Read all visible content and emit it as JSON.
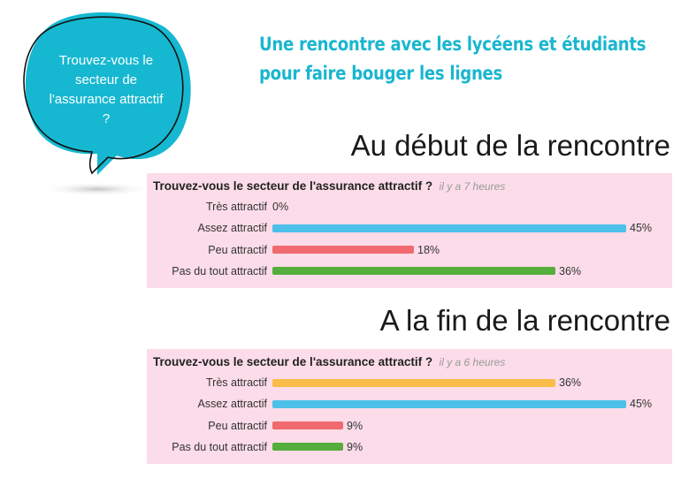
{
  "bubble": {
    "text": "Trouvez-vous le secteur de l'assurance attractif ?",
    "color": "#16b8d1"
  },
  "headline": {
    "line1": "Une rencontre avec les lycéens et étudiants",
    "line2": "pour faire bouger les lignes"
  },
  "colors": {
    "headline": "#1ab6cf",
    "panel_bg": "#fbdce8"
  },
  "chart_data": [
    {
      "type": "bar",
      "orientation": "horizontal",
      "section_title": "Au début de la rencontre",
      "title": "Trouvez-vous le secteur de l'assurance attractif ?",
      "subtitle": "il y a 7 heures",
      "categories": [
        "Très attractif",
        "Assez attractif",
        "Peu attractif",
        "Pas du tout attractif"
      ],
      "values": [
        0,
        45,
        18,
        36
      ],
      "value_labels": [
        "0%",
        "45%",
        "18%",
        "36%"
      ],
      "colors": [
        "#f9bd4a",
        "#4cc0e8",
        "#f06a70",
        "#55ad3c"
      ],
      "xlim": [
        0,
        45
      ]
    },
    {
      "type": "bar",
      "orientation": "horizontal",
      "section_title": "A la fin de la rencontre",
      "title": "Trouvez-vous le secteur de l'assurance attractif ?",
      "subtitle": "il y a 6 heures",
      "categories": [
        "Très attractif",
        "Assez attractif",
        "Peu attractif",
        "Pas du tout attractif"
      ],
      "values": [
        36,
        45,
        9,
        9
      ],
      "value_labels": [
        "36%",
        "45%",
        "9%",
        "9%"
      ],
      "colors": [
        "#f9bd4a",
        "#4cc0e8",
        "#f06a70",
        "#55ad3c"
      ],
      "xlim": [
        0,
        45
      ]
    }
  ]
}
